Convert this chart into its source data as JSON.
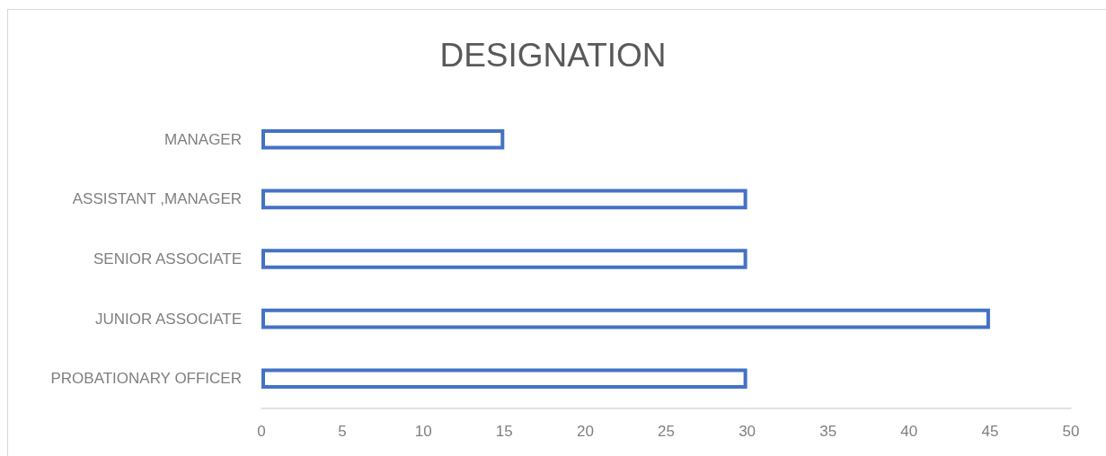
{
  "chart_data": {
    "type": "bar",
    "orientation": "horizontal",
    "title": "DESIGNATION",
    "categories": [
      "MANAGER",
      "ASSISTANT ,MANAGER",
      "SENIOR ASSOCIATE",
      "JUNIOR ASSOCIATE",
      "PROBATIONARY OFFICER"
    ],
    "values": [
      15,
      30,
      30,
      45,
      30
    ],
    "color": "#4472c4",
    "xlim": [
      0,
      50
    ],
    "xticks": [
      0,
      5,
      10,
      15,
      20,
      25,
      30,
      35,
      40,
      45,
      50
    ],
    "grid": false
  }
}
